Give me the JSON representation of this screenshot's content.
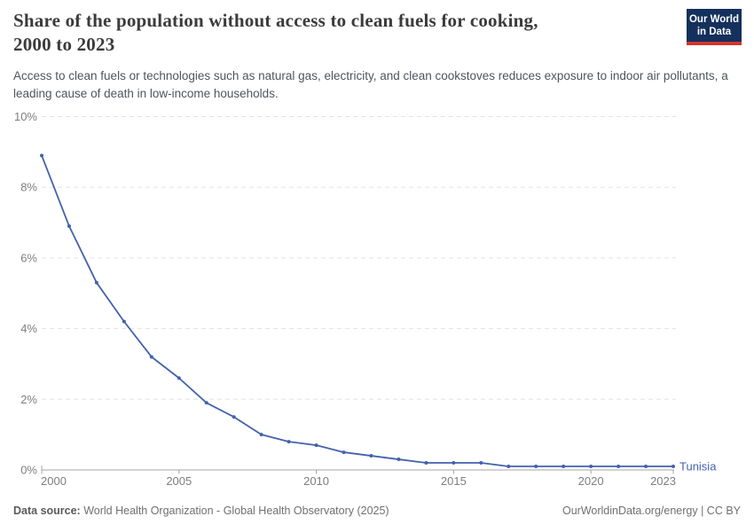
{
  "header": {
    "title_line1": "Share of the population without access to clean fuels for cooking,",
    "title_line2": "2000 to 2023",
    "subtitle": "Access to clean fuels or technologies such as natural gas, electricity, and clean cookstoves reduces exposure to indoor air pollutants, a leading cause of death in low-income households.",
    "logo": {
      "line1": "Our World",
      "line2": "in Data",
      "bg_color": "#14305c",
      "accent_color": "#d2362c"
    }
  },
  "chart_data": {
    "type": "line",
    "title": "Share of the population without access to clean fuels for cooking, 2000 to 2023",
    "x": [
      2000,
      2001,
      2002,
      2003,
      2004,
      2005,
      2006,
      2007,
      2008,
      2009,
      2010,
      2011,
      2012,
      2013,
      2014,
      2015,
      2016,
      2017,
      2018,
      2019,
      2020,
      2021,
      2022,
      2023
    ],
    "series": [
      {
        "name": "Tunisia",
        "color": "#4262ab",
        "values": [
          8.9,
          6.9,
          5.3,
          4.2,
          3.2,
          2.6,
          1.9,
          1.5,
          1.0,
          0.8,
          0.7,
          0.5,
          0.4,
          0.3,
          0.2,
          0.2,
          0.2,
          0.1,
          0.1,
          0.1,
          0.1,
          0.1,
          0.1,
          0.1
        ]
      }
    ],
    "xlim": [
      2000,
      2023
    ],
    "ylim": [
      0,
      10
    ],
    "x_tick_values": [
      2000,
      2005,
      2010,
      2015,
      2020,
      2023
    ],
    "x_tick_labels": [
      "2000",
      "2005",
      "2010",
      "2015",
      "2020",
      "2023"
    ],
    "y_tick_values": [
      0,
      2,
      4,
      6,
      8,
      10
    ],
    "y_tick_suffix": "%",
    "grid": "horizontal dashed, solid baseline at 0%",
    "legend_position": "end-of-line label",
    "end_label": "Tunisia"
  },
  "footer": {
    "source_label": "Data source:",
    "source_text": "World Health Organization - Global Health Observatory (2025)",
    "rights": "OurWorldinData.org/energy | CC BY"
  },
  "colors": {
    "line": "#4262ab",
    "tick_label": "#7d7d7d",
    "gridline": "#e2e2e2",
    "axis": "#a5a5a5",
    "title": "#3b3b3b",
    "subtitle": "#4f555b",
    "footer": "#716f6f"
  }
}
